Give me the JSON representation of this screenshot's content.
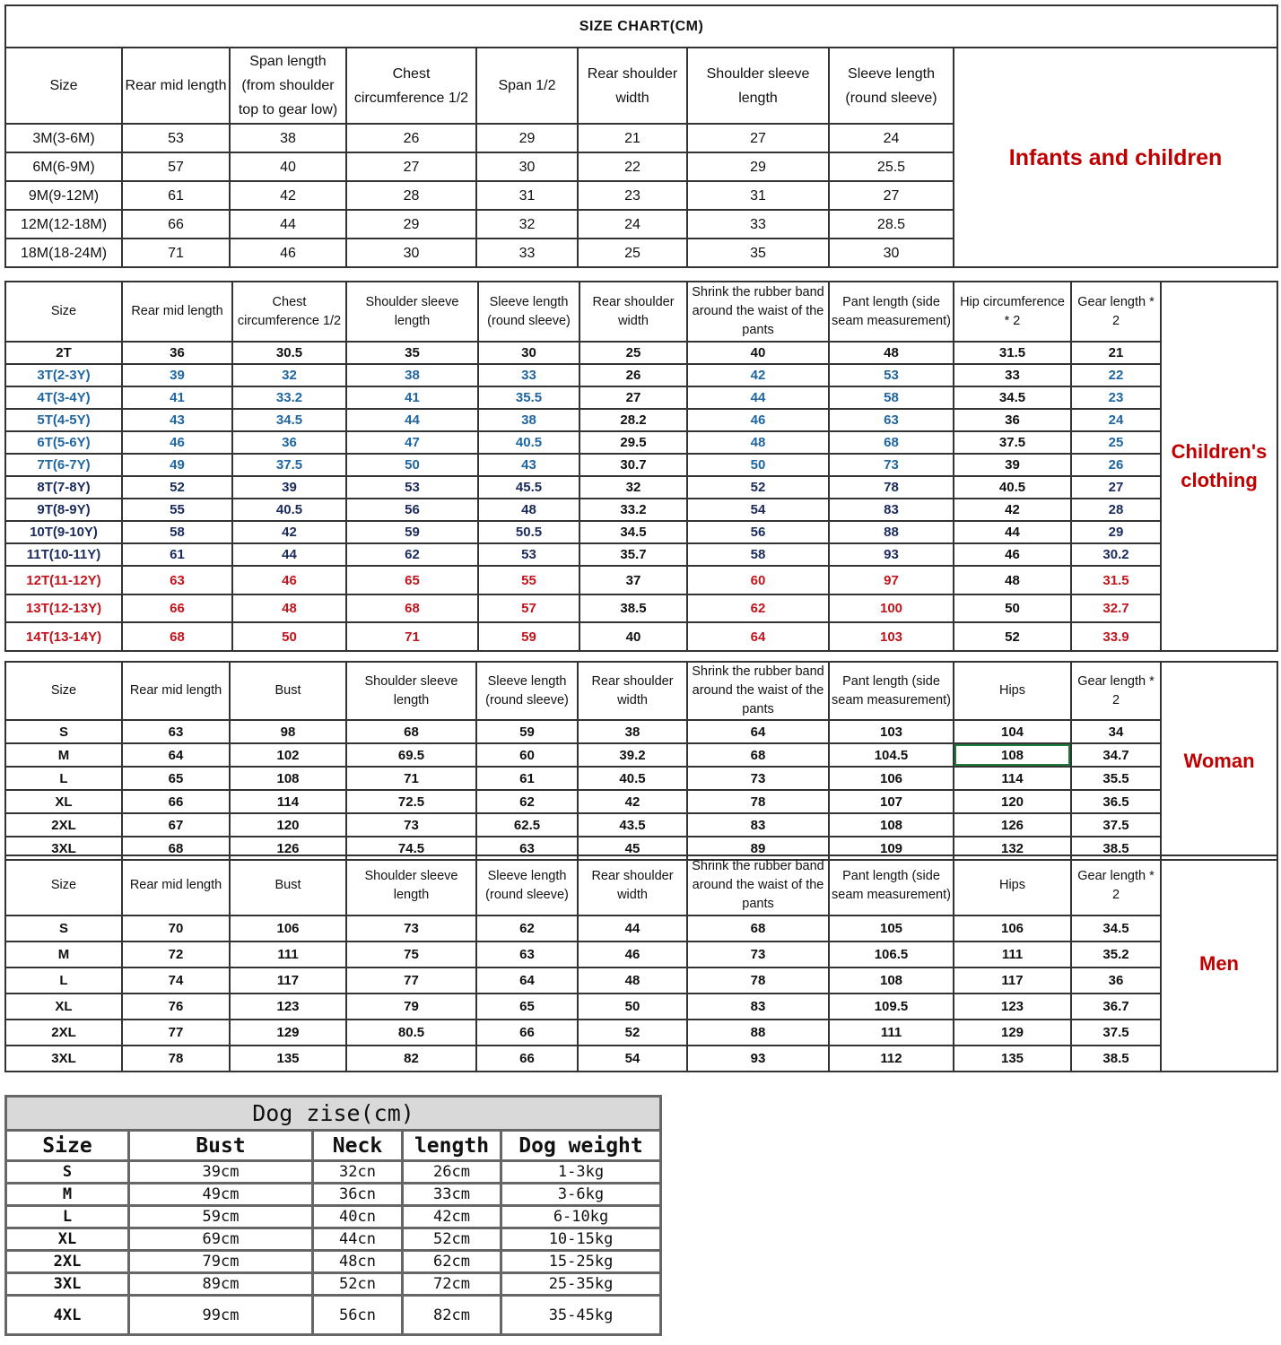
{
  "title": "SIZE CHART(CM)",
  "colors": {
    "red": "#c0151c",
    "blue": "#1f66a0",
    "navy": "#1b2a5c",
    "selected_cell_border": "#1d7a3a"
  },
  "tables": [
    {
      "id": "infants",
      "side_label": "Infants and children",
      "headers": [
        "Size",
        "Rear mid length",
        "Span length (from shoulder top to gear low)",
        "Chest circumference 1/2",
        "Span 1/2",
        "Rear shoulder width",
        "Shoulder sleeve length",
        "Sleeve length (round sleeve)"
      ],
      "rows": [
        {
          "tone": "black",
          "cells": [
            "3M(3-6M)",
            "53",
            "38",
            "26",
            "29",
            "21",
            "27",
            "24"
          ]
        },
        {
          "tone": "black",
          "cells": [
            "6M(6-9M)",
            "57",
            "40",
            "27",
            "30",
            "22",
            "29",
            "25.5"
          ]
        },
        {
          "tone": "black",
          "cells": [
            "9M(9-12M)",
            "61",
            "42",
            "28",
            "31",
            "23",
            "31",
            "27"
          ]
        },
        {
          "tone": "black",
          "cells": [
            "12M(12-18M)",
            "66",
            "44",
            "29",
            "32",
            "24",
            "33",
            "28.5"
          ]
        },
        {
          "tone": "black",
          "cells": [
            "18M(18-24M)",
            "71",
            "46",
            "30",
            "33",
            "25",
            "35",
            "30"
          ]
        }
      ]
    },
    {
      "id": "children",
      "side_label": "Children's clothing",
      "headers": [
        "Size",
        "Rear mid length",
        "Chest circumference 1/2",
        "Shoulder sleeve length",
        "Sleeve length (round sleeve)",
        "Rear shoulder width",
        "Shrink the rubber band around the waist of the pants",
        "Pant length (side seam measurement)",
        "Hip circumference * 2",
        "Gear length * 2"
      ],
      "rows": [
        {
          "tone": "black",
          "cells": [
            "2T",
            "36",
            "30.5",
            "35",
            "30",
            "25",
            "40",
            "48",
            "31.5",
            "21"
          ]
        },
        {
          "tone": "blue",
          "cells": [
            "3T(2-3Y)",
            "39",
            "32",
            "38",
            "33",
            "26",
            "42",
            "53",
            "33",
            "22"
          ]
        },
        {
          "tone": "blue",
          "cells": [
            "4T(3-4Y)",
            "41",
            "33.2",
            "41",
            "35.5",
            "27",
            "44",
            "58",
            "34.5",
            "23"
          ]
        },
        {
          "tone": "blue",
          "cells": [
            "5T(4-5Y)",
            "43",
            "34.5",
            "44",
            "38",
            "28.2",
            "46",
            "63",
            "36",
            "24"
          ]
        },
        {
          "tone": "blue",
          "cells": [
            "6T(5-6Y)",
            "46",
            "36",
            "47",
            "40.5",
            "29.5",
            "48",
            "68",
            "37.5",
            "25"
          ]
        },
        {
          "tone": "blue",
          "cells": [
            "7T(6-7Y)",
            "49",
            "37.5",
            "50",
            "43",
            "30.7",
            "50",
            "73",
            "39",
            "26"
          ]
        },
        {
          "tone": "navy",
          "cells": [
            "8T(7-8Y)",
            "52",
            "39",
            "53",
            "45.5",
            "32",
            "52",
            "78",
            "40.5",
            "27"
          ]
        },
        {
          "tone": "navy",
          "cells": [
            "9T(8-9Y)",
            "55",
            "40.5",
            "56",
            "48",
            "33.2",
            "54",
            "83",
            "42",
            "28"
          ]
        },
        {
          "tone": "navy",
          "cells": [
            "10T(9-10Y)",
            "58",
            "42",
            "59",
            "50.5",
            "34.5",
            "56",
            "88",
            "44",
            "29"
          ]
        },
        {
          "tone": "navy",
          "cells": [
            "11T(10-11Y)",
            "61",
            "44",
            "62",
            "53",
            "35.7",
            "58",
            "93",
            "46",
            "30.2"
          ]
        },
        {
          "tone": "red",
          "cells": [
            "12T(11-12Y)",
            "63",
            "46",
            "65",
            "55",
            "37",
            "60",
            "97",
            "48",
            "31.5"
          ]
        },
        {
          "tone": "red",
          "cells": [
            "13T(12-13Y)",
            "66",
            "48",
            "68",
            "57",
            "38.5",
            "62",
            "100",
            "50",
            "32.7"
          ]
        },
        {
          "tone": "red",
          "cells": [
            "14T(13-14Y)",
            "68",
            "50",
            "71",
            "59",
            "40",
            "64",
            "103",
            "52",
            "33.9"
          ]
        }
      ]
    },
    {
      "id": "woman",
      "side_label": "Woman",
      "headers": [
        "Size",
        "Rear mid length",
        "Bust",
        "Shoulder sleeve length",
        "Sleeve length (round sleeve)",
        "Rear shoulder width",
        "Shrink the rubber band around the waist of the pants",
        "Pant length (side seam measurement)",
        "Hips",
        "Gear length * 2"
      ],
      "rows": [
        {
          "tone": "black",
          "cells": [
            "S",
            "63",
            "98",
            "68",
            "59",
            "38",
            "64",
            "103",
            "104",
            "34"
          ]
        },
        {
          "tone": "black",
          "cells": [
            "M",
            "64",
            "102",
            "69.5",
            "60",
            "39.2",
            "68",
            "104.5",
            "108",
            "34.7"
          ]
        },
        {
          "tone": "black",
          "cells": [
            "L",
            "65",
            "108",
            "71",
            "61",
            "40.5",
            "73",
            "106",
            "114",
            "35.5"
          ]
        },
        {
          "tone": "black",
          "cells": [
            "XL",
            "66",
            "114",
            "72.5",
            "62",
            "42",
            "78",
            "107",
            "120",
            "36.5"
          ]
        },
        {
          "tone": "black",
          "cells": [
            "2XL",
            "67",
            "120",
            "73",
            "62.5",
            "43.5",
            "83",
            "108",
            "126",
            "37.5"
          ]
        },
        {
          "tone": "black",
          "cells": [
            "3XL",
            "68",
            "126",
            "74.5",
            "63",
            "45",
            "89",
            "109",
            "132",
            "38.5"
          ]
        }
      ]
    },
    {
      "id": "men",
      "side_label": "Men",
      "headers": [
        "Size",
        "Rear mid length",
        "Bust",
        "Shoulder sleeve length",
        "Sleeve length (round sleeve)",
        "Rear shoulder width",
        "Shrink the rubber band around the waist of the pants",
        "Pant length (side seam measurement)",
        "Hips",
        "Gear length * 2"
      ],
      "rows": [
        {
          "tone": "black",
          "cells": [
            "S",
            "70",
            "106",
            "73",
            "62",
            "44",
            "68",
            "105",
            "106",
            "34.5"
          ]
        },
        {
          "tone": "black",
          "cells": [
            "M",
            "72",
            "111",
            "75",
            "63",
            "46",
            "73",
            "106.5",
            "111",
            "35.2"
          ]
        },
        {
          "tone": "black",
          "cells": [
            "L",
            "74",
            "117",
            "77",
            "64",
            "48",
            "78",
            "108",
            "117",
            "36"
          ]
        },
        {
          "tone": "black",
          "cells": [
            "XL",
            "76",
            "123",
            "79",
            "65",
            "50",
            "83",
            "109.5",
            "123",
            "36.7"
          ]
        },
        {
          "tone": "black",
          "cells": [
            "2XL",
            "77",
            "129",
            "80.5",
            "66",
            "52",
            "88",
            "111",
            "129",
            "37.5"
          ]
        },
        {
          "tone": "black",
          "cells": [
            "3XL",
            "78",
            "135",
            "82",
            "66",
            "54",
            "93",
            "112",
            "135",
            "38.5"
          ]
        }
      ]
    }
  ],
  "dog": {
    "title": "Dog zise(cm)",
    "headers": [
      "Size",
      "Bust",
      "Neck",
      "length",
      "Dog weight"
    ],
    "rows": [
      [
        "S",
        "39cm",
        "32cn",
        "26cm",
        "1-3kg"
      ],
      [
        "M",
        "49cm",
        "36cn",
        "33cm",
        "3-6kg"
      ],
      [
        "L",
        "59cm",
        "40cn",
        "42cm",
        "6-10kg"
      ],
      [
        "XL",
        "69cm",
        "44cn",
        "52cm",
        "10-15kg"
      ],
      [
        "2XL",
        "79cm",
        "48cn",
        "62cm",
        "15-25kg"
      ],
      [
        "3XL",
        "89cm",
        "52cn",
        "72cm",
        "25-35kg"
      ],
      [
        "4XL",
        "99cm",
        "56cn",
        "82cm",
        "35-45kg"
      ]
    ]
  }
}
